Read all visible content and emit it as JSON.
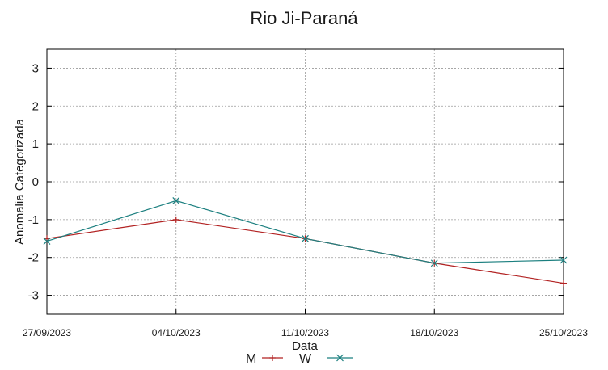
{
  "chart_data": {
    "type": "line",
    "title": "Rio Ji-Paraná",
    "xlabel": "Data",
    "ylabel": "Anomalia Categorizada",
    "categories": [
      "27/09/2023",
      "04/10/2023",
      "11/10/2023",
      "18/10/2023",
      "25/10/2023"
    ],
    "ylim": [
      -3.5,
      3.5
    ],
    "yticks": [
      "3",
      "2",
      "1",
      "0",
      "-1",
      "-2",
      "-3"
    ],
    "ytick_values": [
      3,
      2,
      1,
      0,
      -1,
      -2,
      -3
    ],
    "grid": true,
    "legend_position": "bottom",
    "series": [
      {
        "name": "M",
        "marker": "plus",
        "color": "#b22222",
        "values": [
          -1.5,
          -1.0,
          -1.5,
          -2.15,
          -2.68
        ]
      },
      {
        "name": "W",
        "marker": "cross",
        "color": "#1b7f7f",
        "values": [
          -1.57,
          -0.5,
          -1.5,
          -2.15,
          -2.07
        ]
      }
    ]
  }
}
